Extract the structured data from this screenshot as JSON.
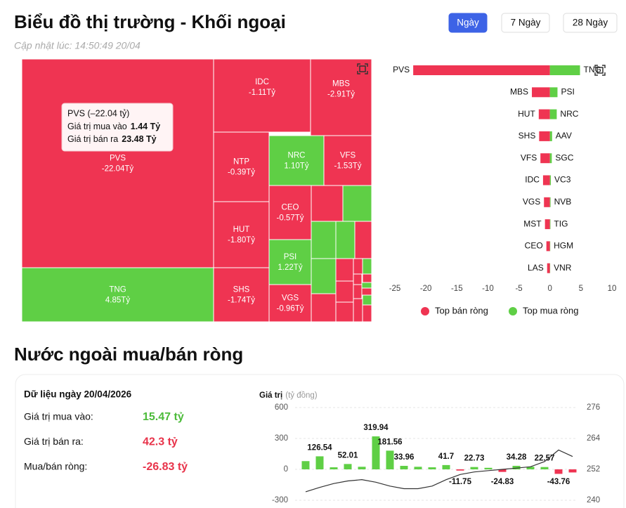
{
  "header": {
    "title": "Biểu đồ thị trường - Khối ngoại",
    "updated": "Cập nhật lúc: 14:50:49 20/04",
    "tabs": [
      "Ngày",
      "7 Ngày",
      "28 Ngày"
    ],
    "active_tab": 0
  },
  "section_title": "Nước ngoài mua/bán ròng",
  "summary": {
    "date_label": "Dữ liệu ngày 20/04/2026",
    "rows": [
      {
        "label": "Giá trị mua vào:",
        "value": "15.47 tỷ",
        "color": "#4cbb3a"
      },
      {
        "label": "Giá trị bán ra:",
        "value": "42.3 tỷ",
        "color": "#e8334a"
      },
      {
        "label": "Mua/bán ròng:",
        "value": "-26.83 tỷ",
        "color": "#e8334a"
      }
    ]
  },
  "tooltip": {
    "title": "PVS (–22.04 tỷ)",
    "rows": [
      {
        "label": "Giá trị mua vào",
        "value": "1.44 Tỷ"
      },
      {
        "label": "Giá trị bán ra",
        "value": "23.48 Tỷ"
      }
    ]
  },
  "chart_data": [
    {
      "type": "treemap",
      "categories": [
        "PVS",
        "TNG",
        "IDC",
        "MBS",
        "NTP",
        "NRC",
        "VFS",
        "HUT",
        "CEO",
        "PSI",
        "SHS",
        "VGS"
      ],
      "values": [
        -22.04,
        4.85,
        -1.11,
        -2.91,
        -0.39,
        1.1,
        -1.53,
        -1.8,
        -0.57,
        1.22,
        -1.74,
        -0.96
      ],
      "value_labels": [
        "-22.04Tỷ",
        "4.85Tỷ",
        "-1.11Tỷ",
        "-2.91Tỷ",
        "-0.39Tỷ",
        "1.10Tỷ",
        "-1.53Tỷ",
        "-1.80Tỷ",
        "-0.57Tỷ",
        "1.22Tỷ",
        "-1.74Tỷ",
        "-0.96Tỷ"
      ],
      "positive_color": "#5fcf45",
      "negative_color": "#ef3452"
    },
    {
      "type": "diverging-bar",
      "series": [
        {
          "name": "Top bán ròng",
          "color": "#ef3452",
          "categories": [
            "PVS",
            "MBS",
            "HUT",
            "SHS",
            "VFS",
            "IDC",
            "VGS",
            "MST",
            "CEO",
            "LAS"
          ],
          "values": [
            -22.04,
            -2.91,
            -1.8,
            -1.74,
            -1.53,
            -1.11,
            -0.96,
            -0.8,
            -0.57,
            -0.45
          ]
        },
        {
          "name": "Top mua ròng",
          "color": "#5fcf45",
          "categories": [
            "TNG",
            "PSI",
            "NRC",
            "AAV",
            "SGC",
            "VC3",
            "NVB",
            "TIG",
            "HGM",
            "VNR"
          ],
          "values": [
            4.85,
            1.22,
            1.1,
            0.35,
            0.3,
            0.15,
            0.1,
            0.08,
            0.05,
            0.04
          ]
        }
      ],
      "xlim": [
        -25,
        10
      ],
      "xticks": [
        -25,
        -20,
        -15,
        -10,
        -5,
        0,
        5,
        10
      ]
    },
    {
      "type": "combo",
      "y_label": "Giá trị",
      "y_unit": "(tỷ đồng)",
      "series": [
        {
          "type": "bar",
          "positive_color": "#5fcf45",
          "negative_color": "#ef3452",
          "values": [
            80,
            126.54,
            20,
            52.01,
            25,
            319.94,
            181.56,
            33.96,
            25,
            20,
            41.7,
            -11.75,
            22.73,
            15,
            -24.83,
            34.28,
            25,
            22.57,
            -43.76,
            -30
          ],
          "value_labels": [
            null,
            "126.54",
            null,
            "52.01",
            null,
            "319.94",
            "181.56",
            "33.96",
            null,
            null,
            "41.7",
            "-11.75",
            "22.73",
            null,
            "-24.83",
            "34.28",
            null,
            "22.57",
            "-43.76",
            null
          ]
        },
        {
          "type": "line",
          "axis": "y2",
          "color": "#333333",
          "values": [
            243.3,
            245,
            246.5,
            247.5,
            248,
            247,
            245.5,
            244.5,
            244.5,
            245.5,
            248,
            250,
            251,
            251.5,
            252,
            252.5,
            253,
            255,
            259.5,
            257
          ]
        }
      ],
      "ylim": [
        -300,
        600
      ],
      "yticks": [
        -300,
        0,
        300,
        600
      ],
      "y2lim": [
        240,
        276
      ],
      "y2ticks": [
        240,
        252,
        264,
        276
      ]
    }
  ]
}
